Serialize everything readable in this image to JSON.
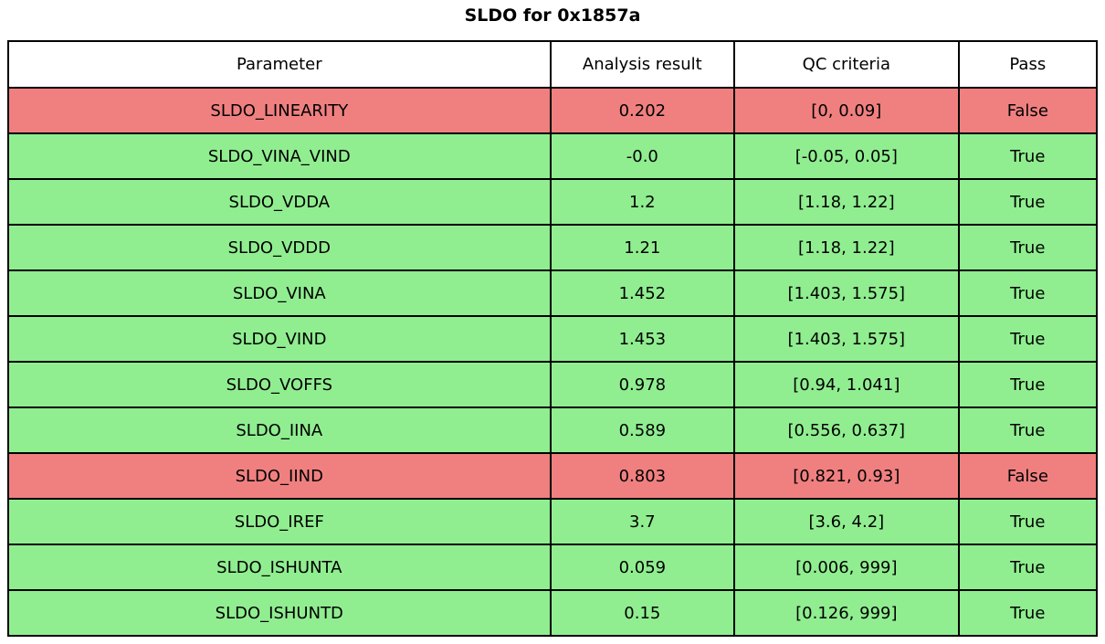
{
  "title": "SLDO for 0x1857a",
  "colors": {
    "pass_row_bg": "#90ee90",
    "fail_row_bg": "#f08080",
    "header_bg": "#ffffff",
    "border": "#000000",
    "text": "#000000"
  },
  "table": {
    "headers": [
      "Parameter",
      "Analysis result",
      "QC criteria",
      "Pass"
    ],
    "rows": [
      {
        "parameter": "SLDO_LINEARITY",
        "result": "0.202",
        "criteria": "[0, 0.09]",
        "pass": "False",
        "status": "fail"
      },
      {
        "parameter": "SLDO_VINA_VIND",
        "result": "-0.0",
        "criteria": "[-0.05, 0.05]",
        "pass": "True",
        "status": "pass"
      },
      {
        "parameter": "SLDO_VDDA",
        "result": "1.2",
        "criteria": "[1.18, 1.22]",
        "pass": "True",
        "status": "pass"
      },
      {
        "parameter": "SLDO_VDDD",
        "result": "1.21",
        "criteria": "[1.18, 1.22]",
        "pass": "True",
        "status": "pass"
      },
      {
        "parameter": "SLDO_VINA",
        "result": "1.452",
        "criteria": "[1.403, 1.575]",
        "pass": "True",
        "status": "pass"
      },
      {
        "parameter": "SLDO_VIND",
        "result": "1.453",
        "criteria": "[1.403, 1.575]",
        "pass": "True",
        "status": "pass"
      },
      {
        "parameter": "SLDO_VOFFS",
        "result": "0.978",
        "criteria": "[0.94, 1.041]",
        "pass": "True",
        "status": "pass"
      },
      {
        "parameter": "SLDO_IINA",
        "result": "0.589",
        "criteria": "[0.556, 0.637]",
        "pass": "True",
        "status": "pass"
      },
      {
        "parameter": "SLDO_IIND",
        "result": "0.803",
        "criteria": "[0.821, 0.93]",
        "pass": "False",
        "status": "fail"
      },
      {
        "parameter": "SLDO_IREF",
        "result": "3.7",
        "criteria": "[3.6, 4.2]",
        "pass": "True",
        "status": "pass"
      },
      {
        "parameter": "SLDO_ISHUNTA",
        "result": "0.059",
        "criteria": "[0.006, 999]",
        "pass": "True",
        "status": "pass"
      },
      {
        "parameter": "SLDO_ISHUNTD",
        "result": "0.15",
        "criteria": "[0.126, 999]",
        "pass": "True",
        "status": "pass"
      }
    ]
  },
  "chart_data": {
    "type": "table",
    "title": "SLDO for 0x1857a",
    "columns": [
      "Parameter",
      "Analysis result",
      "QC criteria",
      "Pass"
    ],
    "rows": [
      [
        "SLDO_LINEARITY",
        0.202,
        "[0, 0.09]",
        false
      ],
      [
        "SLDO_VINA_VIND",
        -0.0,
        "[-0.05, 0.05]",
        true
      ],
      [
        "SLDO_VDDA",
        1.2,
        "[1.18, 1.22]",
        true
      ],
      [
        "SLDO_VDDD",
        1.21,
        "[1.18, 1.22]",
        true
      ],
      [
        "SLDO_VINA",
        1.452,
        "[1.403, 1.575]",
        true
      ],
      [
        "SLDO_VIND",
        1.453,
        "[1.403, 1.575]",
        true
      ],
      [
        "SLDO_VOFFS",
        0.978,
        "[0.94, 1.041]",
        true
      ],
      [
        "SLDO_IINA",
        0.589,
        "[0.556, 0.637]",
        true
      ],
      [
        "SLDO_IIND",
        0.803,
        "[0.821, 0.93]",
        false
      ],
      [
        "SLDO_IREF",
        3.7,
        "[3.6, 4.2]",
        true
      ],
      [
        "SLDO_ISHUNTA",
        0.059,
        "[0.006, 999]",
        true
      ],
      [
        "SLDO_ISHUNTD",
        0.15,
        "[0.126, 999]",
        true
      ]
    ],
    "layout_hints": {
      "row_color_pass": "#90ee90",
      "row_color_fail": "#f08080",
      "header_background": "#ffffff",
      "grid": "on",
      "cell_text_align": "center"
    }
  }
}
